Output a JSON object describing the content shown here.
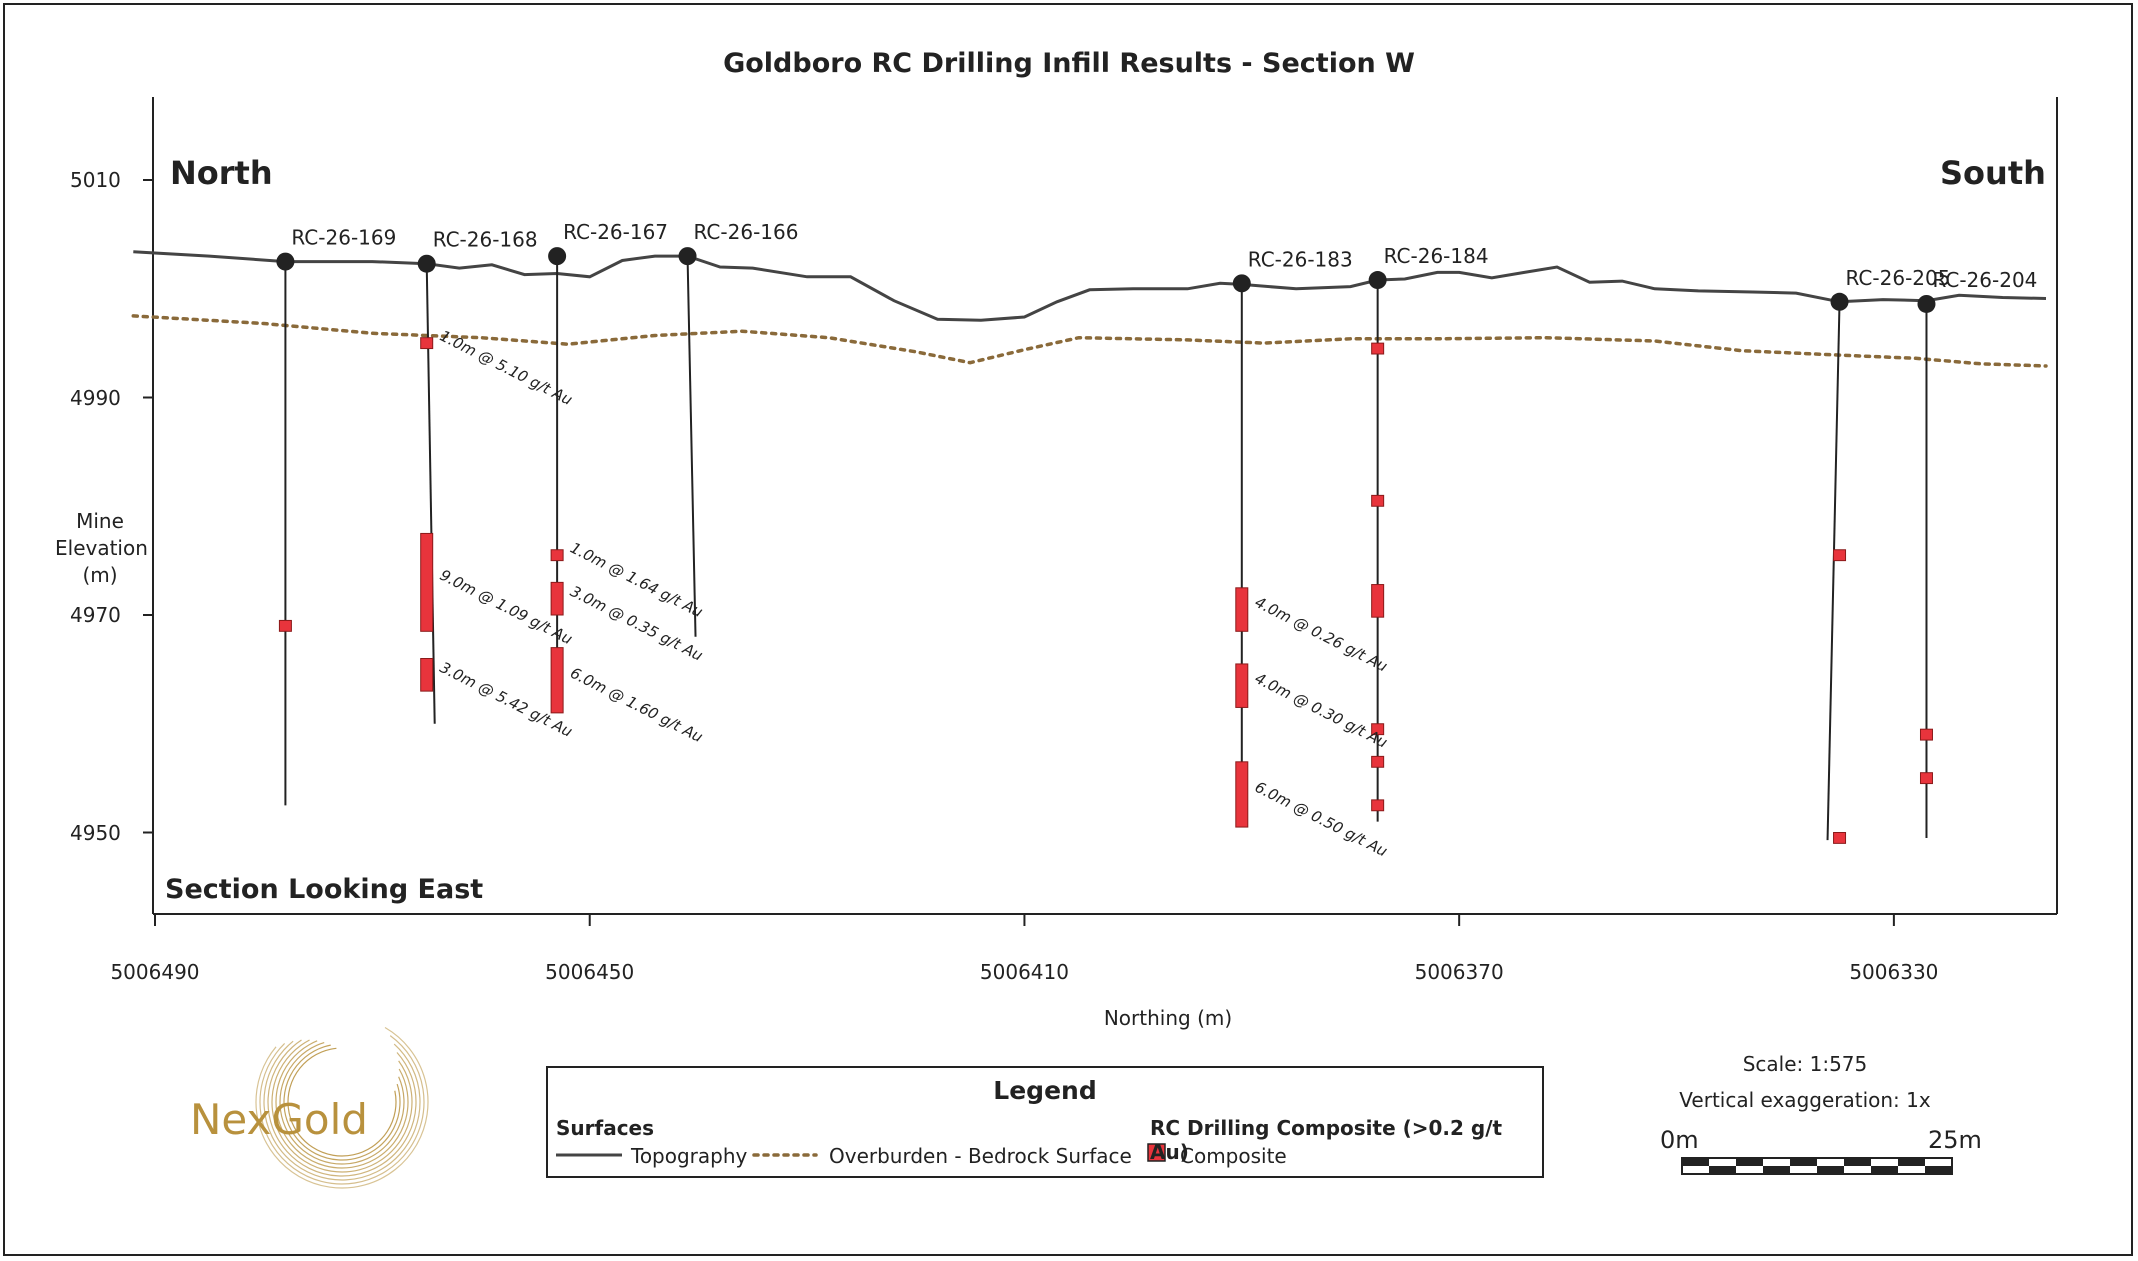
{
  "title": "Goldboro RC Drilling Infill Results - Section W",
  "y_axis_label_lines": [
    "Mine",
    "Elevation",
    "(m)"
  ],
  "x_axis_label": "Northing (m)",
  "y_ticks": [
    "5010",
    "4990",
    "4970",
    "4950"
  ],
  "x_ticks": [
    "5006490",
    "5006450",
    "5006410",
    "5006370",
    "5006330"
  ],
  "direction_left": "North",
  "direction_right": "South",
  "section_view": "Section Looking East",
  "holes": [
    {
      "name": "RC-26-169",
      "northing": 5006478.0,
      "collar_elev": 5002.5,
      "bottom_elev": 4952.5
    },
    {
      "name": "RC-26-168",
      "northing": 5006465.0,
      "collar_elev": 5002.3,
      "bottom_elev": 4960.0
    },
    {
      "name": "RC-26-167",
      "northing": 5006453.0,
      "collar_elev": 5003.0,
      "bottom_elev": 4961.0
    },
    {
      "name": "RC-26-166",
      "northing": 5006441.0,
      "collar_elev": 5003.0,
      "bottom_elev": 4968.0
    },
    {
      "name": "RC-26-183",
      "northing": 5006390.0,
      "collar_elev": 5000.5,
      "bottom_elev": 4951.0
    },
    {
      "name": "RC-26-184",
      "northing": 5006377.5,
      "collar_elev": 5000.8,
      "bottom_elev": 4951.0
    },
    {
      "name": "RC-26-205",
      "northing": 5006335.0,
      "collar_elev": 4998.8,
      "bottom_elev": 4949.3
    },
    {
      "name": "RC-26-204",
      "northing": 5006327.0,
      "collar_elev": 4998.6,
      "bottom_elev": 4949.5
    }
  ],
  "composites": [
    {
      "hole": "RC-26-169",
      "from": 4969.5,
      "to": 4968.5
    },
    {
      "hole": "RC-26-168",
      "from": 4995.5,
      "to": 4994.5,
      "label": "1.0m @ 5.10 g/t Au"
    },
    {
      "hole": "RC-26-168",
      "from": 4977.5,
      "to": 4968.5,
      "label": "9.0m @ 1.09 g/t Au"
    },
    {
      "hole": "RC-26-168",
      "from": 4966.0,
      "to": 4963.0,
      "label": "3.0m @ 5.42 g/t Au"
    },
    {
      "hole": "RC-26-167",
      "from": 4976.0,
      "to": 4975.0,
      "label": "1.0m @ 1.64 g/t Au"
    },
    {
      "hole": "RC-26-167",
      "from": 4973.0,
      "to": 4970.0,
      "label": "3.0m @ 0.35 g/t Au"
    },
    {
      "hole": "RC-26-167",
      "from": 4967.0,
      "to": 4961.0,
      "label": "6.0m @ 1.60 g/t Au"
    },
    {
      "hole": "RC-26-183",
      "from": 4972.5,
      "to": 4968.5,
      "label": "4.0m @ 0.26 g/t Au"
    },
    {
      "hole": "RC-26-183",
      "from": 4965.5,
      "to": 4961.5,
      "label": "4.0m @ 0.30 g/t Au"
    },
    {
      "hole": "RC-26-183",
      "from": 4956.5,
      "to": 4950.5,
      "label": "6.0m @ 0.50 g/t Au"
    },
    {
      "hole": "RC-26-184",
      "from": 4995.0,
      "to": 4994.0
    },
    {
      "hole": "RC-26-184",
      "from": 4981.0,
      "to": 4980.0
    },
    {
      "hole": "RC-26-184",
      "from": 4972.8,
      "to": 4969.8
    },
    {
      "hole": "RC-26-184",
      "from": 4960.0,
      "to": 4959.0
    },
    {
      "hole": "RC-26-184",
      "from": 4957.0,
      "to": 4956.0
    },
    {
      "hole": "RC-26-184",
      "from": 4953.0,
      "to": 4952.0
    },
    {
      "hole": "RC-26-205",
      "from": 4976.0,
      "to": 4975.0
    },
    {
      "hole": "RC-26-205",
      "from": 4950.0,
      "to": 4949.0
    },
    {
      "hole": "RC-26-204",
      "from": 4959.5,
      "to": 4958.5
    },
    {
      "hole": "RC-26-204",
      "from": 4955.5,
      "to": 4954.5
    }
  ],
  "topography": [
    [
      5006492,
      5003.4
    ],
    [
      5006485,
      5003.0
    ],
    [
      5006478,
      5002.5
    ],
    [
      5006470,
      5002.5
    ],
    [
      5006465,
      5002.3
    ],
    [
      5006462,
      5001.9
    ],
    [
      5006459,
      5002.2
    ],
    [
      5006456,
      5001.3
    ],
    [
      5006453,
      5001.4
    ],
    [
      5006450,
      5001.1
    ],
    [
      5006447,
      5002.6
    ],
    [
      5006444,
      5003.0
    ],
    [
      5006441,
      5003.0
    ],
    [
      5006438,
      5002.0
    ],
    [
      5006435,
      5001.9
    ],
    [
      5006430,
      5001.1
    ],
    [
      5006426,
      5001.1
    ],
    [
      5006422,
      4998.9
    ],
    [
      5006418,
      4997.2
    ],
    [
      5006414,
      4997.1
    ],
    [
      5006410,
      4997.4
    ],
    [
      5006407,
      4998.8
    ],
    [
      5006404,
      4999.9
    ],
    [
      5006400,
      5000.0
    ],
    [
      5006395,
      5000.0
    ],
    [
      5006392,
      5000.5
    ],
    [
      5006390,
      5000.4
    ],
    [
      5006385,
      5000.0
    ],
    [
      5006380,
      5000.2
    ],
    [
      5006377.5,
      5000.8
    ],
    [
      5006375,
      5000.9
    ],
    [
      5006372,
      5001.5
    ],
    [
      5006370,
      5001.5
    ],
    [
      5006367,
      5001.0
    ],
    [
      5006364,
      5001.5
    ],
    [
      5006361,
      5002.0
    ],
    [
      5006358,
      5000.6
    ],
    [
      5006355,
      5000.7
    ],
    [
      5006352,
      5000.0
    ],
    [
      5006348,
      4999.8
    ],
    [
      5006343,
      4999.7
    ],
    [
      5006339,
      4999.6
    ],
    [
      5006335,
      4998.8
    ],
    [
      5006331,
      4999.0
    ],
    [
      5006327,
      4998.9
    ],
    [
      5006324,
      4999.4
    ],
    [
      5006320,
      4999.2
    ],
    [
      5006316,
      4999.1
    ]
  ],
  "overburden": [
    [
      5006492,
      4997.5
    ],
    [
      5006480,
      4996.8
    ],
    [
      5006470,
      4995.9
    ],
    [
      5006460,
      4995.5
    ],
    [
      5006452,
      4994.9
    ],
    [
      5006444,
      4995.7
    ],
    [
      5006436,
      4996.1
    ],
    [
      5006428,
      4995.5
    ],
    [
      5006420,
      4994.2
    ],
    [
      5006415,
      4993.2
    ],
    [
      5006410,
      4994.4
    ],
    [
      5006405,
      4995.5
    ],
    [
      5006395,
      4995.3
    ],
    [
      5006388,
      4995.0
    ],
    [
      5006380,
      4995.4
    ],
    [
      5006372,
      4995.4
    ],
    [
      5006362,
      4995.5
    ],
    [
      5006352,
      4995.2
    ],
    [
      5006344,
      4994.3
    ],
    [
      5006335,
      4993.9
    ],
    [
      5006328,
      4993.6
    ],
    [
      5006322,
      4993.1
    ],
    [
      5006316,
      4992.9
    ]
  ],
  "legend": {
    "title": "Legend",
    "surfaces_heading": "Surfaces",
    "topography_label": "Topography",
    "overburden_label": "Overburden - Bedrock Surface",
    "composite_heading": "RC Drilling Composite (>0.2 g/t Au)",
    "composite_label": "Composite"
  },
  "scale": {
    "text": "Scale: 1:575",
    "vertical_exaggeration": "Vertical exaggeration: 1x",
    "start_label": "0m",
    "end_label": "25m"
  },
  "logo_text": "NexGold",
  "colors": {
    "topography": "#444444",
    "overburden": "#8a6a3a",
    "composite": "#e8343c",
    "logo_gold": "#b8913d"
  }
}
